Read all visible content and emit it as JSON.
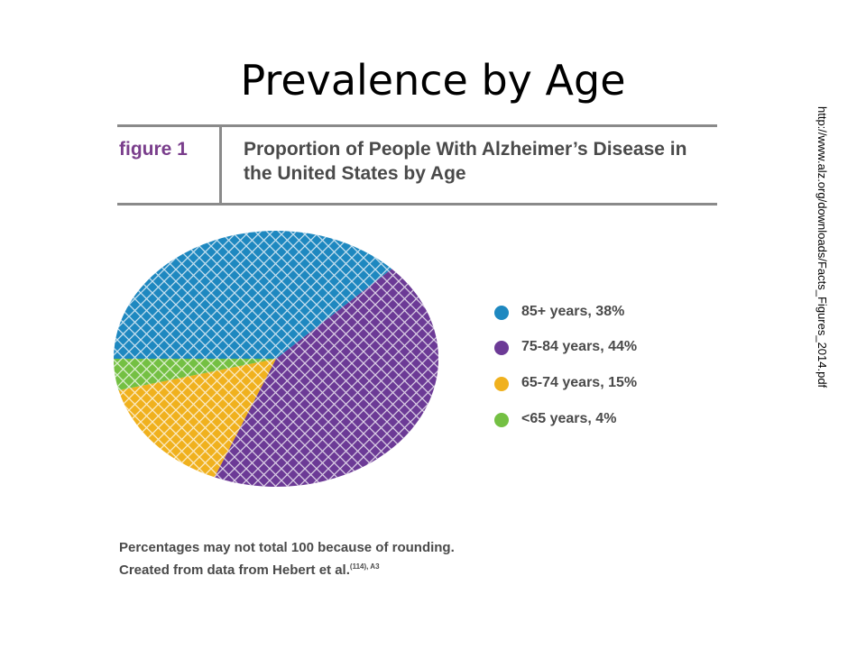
{
  "slide": {
    "title": "Prevalence by Age",
    "source_url": "http://www.alz.org/downloads/Facts_Figures_2014.pdf"
  },
  "figure": {
    "label": "figure  1",
    "caption": "Proportion of People With Alzheimer’s Disease in the United States by Age",
    "footnote_line1": "Percentages may not total 100 because of rounding.",
    "footnote_line2": "Created from data from Hebert et al.",
    "footnote_ref": "(114), A3"
  },
  "chart_data": {
    "type": "pie",
    "slices": [
      {
        "label": "85+ years, 38%",
        "value": 38,
        "color": "#1e88c0"
      },
      {
        "label": "75-84 years, 44%",
        "value": 44,
        "color": "#6c3a96"
      },
      {
        "label": "65-74 years, 15%",
        "value": 15,
        "color": "#f0b11e"
      },
      {
        "label": "<65 years, 4%",
        "value": 4,
        "color": "#74c043"
      }
    ],
    "legend_position": "right",
    "pattern": "white crosshatch"
  }
}
